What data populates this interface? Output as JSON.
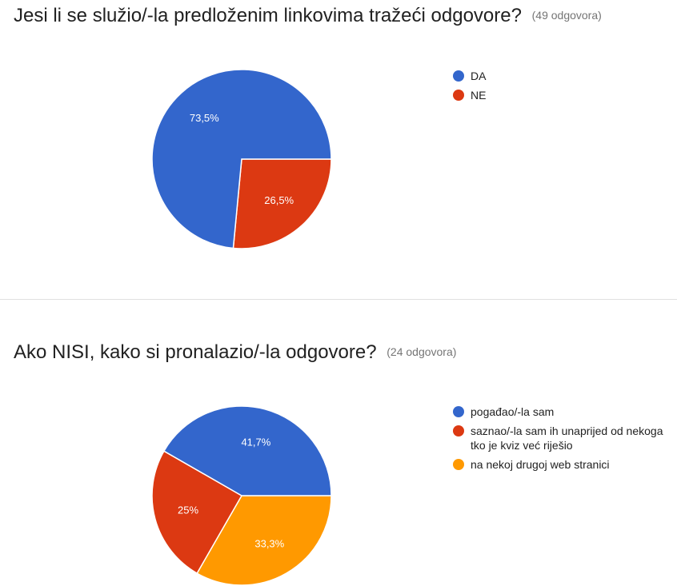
{
  "chart_data": [
    {
      "type": "pie",
      "title": "Jesi li se služio/-la predloženim linkovima tražeći odgovore?",
      "response_count": "(49 odgovora)",
      "slices": [
        {
          "label": "DA",
          "value": 73.5,
          "display": "73,5%",
          "color": "#3366cc"
        },
        {
          "label": "NE",
          "value": 26.5,
          "display": "26,5%",
          "color": "#dc3912"
        }
      ],
      "legend_position": "right"
    },
    {
      "type": "pie",
      "title": "Ako NISI, kako si pronalazio/-la odgovore?",
      "response_count": "(24 odgovora)",
      "slices": [
        {
          "label": "pogađao/-la sam",
          "value": 41.7,
          "display": "41,7%",
          "color": "#3366cc"
        },
        {
          "label": "saznao/-la sam ih unaprijed od nekoga tko je kviz već riješio",
          "value": 25,
          "display": "25%",
          "color": "#dc3912"
        },
        {
          "label": "na nekoj drugoj web stranici",
          "value": 33.3,
          "display": "33,3%",
          "color": "#ff9900"
        }
      ],
      "legend_position": "right"
    }
  ]
}
